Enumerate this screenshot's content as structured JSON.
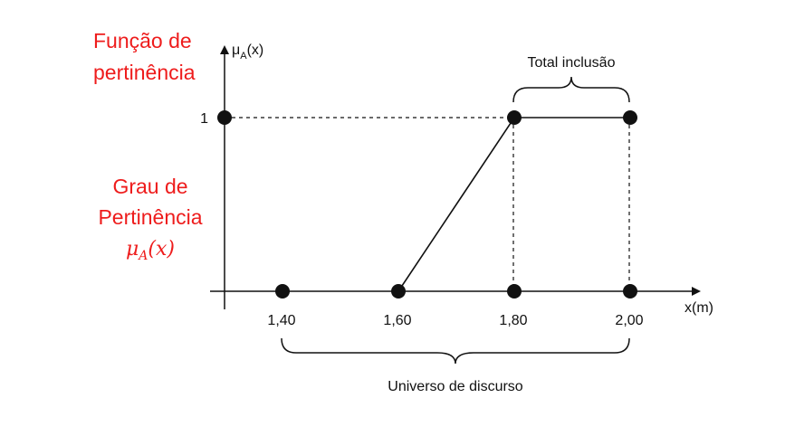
{
  "labels": {
    "funcao_line1": "Função de",
    "funcao_line2": "pertinência",
    "grau_line1": "Grau de",
    "grau_line2": "Pertinência",
    "grau_symbol": "μA(x)",
    "grau_symbol_base": "μ",
    "grau_symbol_sub": "A",
    "grau_symbol_arg": "(x)",
    "y_axis_base": "μ",
    "y_axis_sub": "A",
    "y_axis_arg": "(x)",
    "y_axis_full": "μA(x)",
    "x_axis": "x(m)",
    "y_tick_one": "1",
    "total_inclusao": "Total inclusão",
    "universo": "Universo de discurso"
  },
  "x_ticks": [
    "1,40",
    "1,60",
    "1,80",
    "2,00"
  ],
  "chart_data": {
    "type": "line",
    "series": [
      {
        "x": [
          1.6,
          1.8,
          2.0
        ],
        "y": [
          0,
          1,
          1
        ]
      }
    ],
    "points": [
      {
        "x": 1.3,
        "y": 1
      },
      {
        "x": 1.4,
        "y": 0
      },
      {
        "x": 1.6,
        "y": 0
      },
      {
        "x": 1.8,
        "y": 0
      },
      {
        "x": 2.0,
        "y": 0
      },
      {
        "x": 1.8,
        "y": 1
      },
      {
        "x": 2.0,
        "y": 1
      }
    ],
    "xlabel": "x(m)",
    "ylabel": "μA(x)",
    "xticks": [
      "1,40",
      "1,60",
      "1,80",
      "2,00"
    ],
    "yticks": [
      "1"
    ],
    "ylim": [
      0,
      1
    ]
  },
  "colors": {
    "accent_red": "#ee1c1c",
    "ink": "#111111"
  }
}
